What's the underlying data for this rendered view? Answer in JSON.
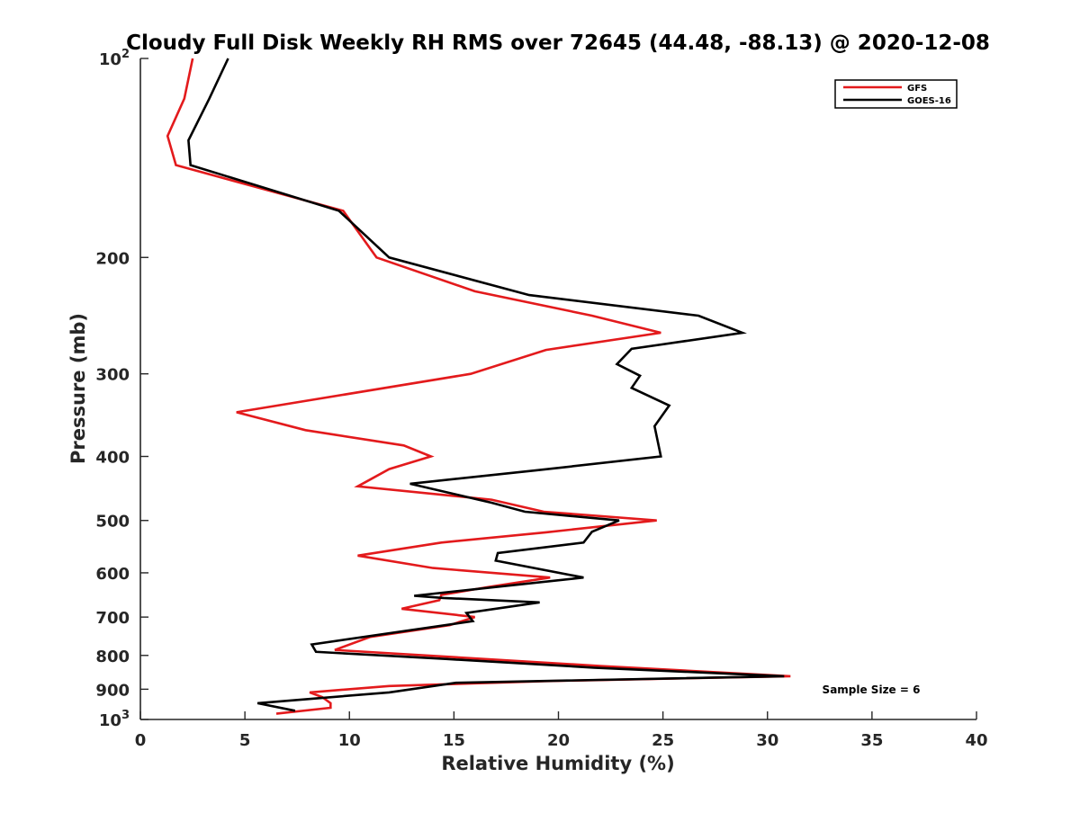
{
  "chart_data": {
    "type": "line",
    "title": "Cloudy Full Disk Weekly RH RMS over 72645 (44.48, -88.13) @ 2020-12-08",
    "xlabel": "Relative Humidity (%)",
    "ylabel": "Pressure (mb)",
    "xlim": [
      0,
      40
    ],
    "ylim": [
      100,
      1000
    ],
    "y_scale": "log",
    "y_reversed": true,
    "x_ticks": [
      {
        "value": 0,
        "label": "0"
      },
      {
        "value": 5,
        "label": "5"
      },
      {
        "value": 10,
        "label": "10"
      },
      {
        "value": 15,
        "label": "15"
      },
      {
        "value": 20,
        "label": "20"
      },
      {
        "value": 25,
        "label": "25"
      },
      {
        "value": 30,
        "label": "30"
      },
      {
        "value": 35,
        "label": "35"
      },
      {
        "value": 40,
        "label": "40"
      }
    ],
    "y_ticks": [
      {
        "value": 100,
        "label": "",
        "base": "10",
        "exp": "2"
      },
      {
        "value": 200,
        "label": "200"
      },
      {
        "value": 300,
        "label": "300"
      },
      {
        "value": 400,
        "label": "400"
      },
      {
        "value": 500,
        "label": "500"
      },
      {
        "value": 600,
        "label": "600"
      },
      {
        "value": 700,
        "label": "700"
      },
      {
        "value": 800,
        "label": "800"
      },
      {
        "value": 900,
        "label": "900"
      },
      {
        "value": 1000,
        "label": "",
        "base": "10",
        "exp": "3"
      }
    ],
    "grid": false,
    "legend": {
      "placement": "top-right"
    },
    "annotation": "Sample Size = 6",
    "series": [
      {
        "name": "GFS",
        "color": "#e31a1c",
        "points": [
          [
            2.5,
            100
          ],
          [
            2.1,
            115
          ],
          [
            1.3,
            131
          ],
          [
            1.7,
            145
          ],
          [
            9.7,
            170
          ],
          [
            11.3,
            200
          ],
          [
            16,
            225
          ],
          [
            21.6,
            245
          ],
          [
            24.9,
            260
          ],
          [
            19.4,
            276
          ],
          [
            15.8,
            300
          ],
          [
            4.6,
            343
          ],
          [
            7.9,
            365
          ],
          [
            12.6,
            385
          ],
          [
            13.9,
            400
          ],
          [
            11.9,
            418
          ],
          [
            10.4,
            444
          ],
          [
            16.8,
            465
          ],
          [
            19.3,
            485
          ],
          [
            24.7,
            500
          ],
          [
            19.4,
            521
          ],
          [
            14.4,
            540
          ],
          [
            10.4,
            565
          ],
          [
            14,
            590
          ],
          [
            19.6,
            610
          ],
          [
            16.7,
            630
          ],
          [
            14.4,
            648
          ],
          [
            14.3,
            660
          ],
          [
            12.5,
            680
          ],
          [
            16,
            700
          ],
          [
            14.8,
            720
          ],
          [
            11,
            750
          ],
          [
            9.3,
            785
          ],
          [
            22,
            830
          ],
          [
            31.1,
            860
          ],
          [
            19.3,
            875
          ],
          [
            11.9,
            890
          ],
          [
            8.1,
            910
          ],
          [
            8.7,
            925
          ],
          [
            9.1,
            945
          ],
          [
            9.1,
            960
          ],
          [
            6.5,
            980
          ]
        ]
      },
      {
        "name": "GOES-16",
        "color": "#000000",
        "points": [
          [
            4.2,
            100
          ],
          [
            3.3,
            115
          ],
          [
            2.3,
            133
          ],
          [
            2.4,
            145
          ],
          [
            9.5,
            170
          ],
          [
            11.9,
            200
          ],
          [
            18.6,
            228
          ],
          [
            26.7,
            245
          ],
          [
            28.8,
            260
          ],
          [
            23.5,
            275
          ],
          [
            22.8,
            290
          ],
          [
            23.9,
            302
          ],
          [
            23.5,
            315
          ],
          [
            25.3,
            335
          ],
          [
            24.6,
            360
          ],
          [
            24.9,
            400
          ],
          [
            18.9,
            420
          ],
          [
            12.9,
            440
          ],
          [
            16.8,
            470
          ],
          [
            18.4,
            485
          ],
          [
            22.9,
            500
          ],
          [
            21.6,
            520
          ],
          [
            21.2,
            540
          ],
          [
            17.1,
            560
          ],
          [
            17,
            575
          ],
          [
            21.2,
            610
          ],
          [
            13.1,
            650
          ],
          [
            14.5,
            655
          ],
          [
            19.1,
            665
          ],
          [
            15.6,
            690
          ],
          [
            15.9,
            710
          ],
          [
            8.2,
            770
          ],
          [
            8.4,
            790
          ],
          [
            14.6,
            810
          ],
          [
            21.7,
            835
          ],
          [
            30.8,
            860
          ],
          [
            15.1,
            880
          ],
          [
            11.9,
            910
          ],
          [
            5.6,
            945
          ],
          [
            7.4,
            970
          ]
        ]
      }
    ]
  }
}
